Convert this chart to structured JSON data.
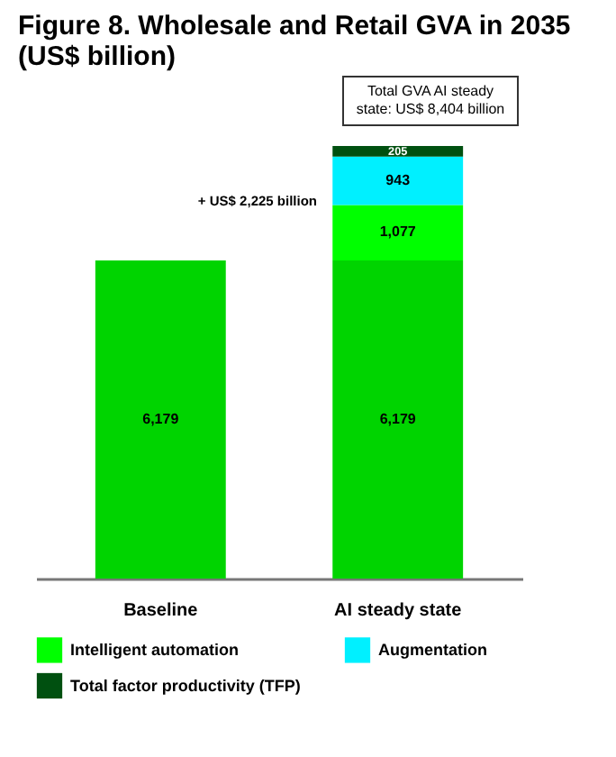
{
  "chart_data": {
    "type": "bar",
    "title": "Figure 8. Wholesale and Retail GVA in 2035 (US$ billion)",
    "categories": [
      "Baseline",
      "AI steady state"
    ],
    "stacked": true,
    "legend": "bottom",
    "series": [
      {
        "color": "#00d400",
        "values": [
          6179,
          6179
        ],
        "value_labels": [
          "6,179",
          "6,179"
        ]
      },
      {
        "name": "Intelligent automation",
        "color": "#00ff00",
        "values": [
          null,
          1077
        ],
        "value_labels": [
          null,
          "1,077"
        ]
      },
      {
        "name": "Augmentation",
        "color": "#00f0ff",
        "values": [
          null,
          943
        ],
        "value_labels": [
          null,
          "943"
        ]
      },
      {
        "name": "Total factor productivity (TFP)",
        "color": "#005010",
        "values": [
          null,
          205
        ],
        "value_labels": [
          null,
          "205"
        ]
      }
    ],
    "annotations": [
      "Total GVA AI steady state: US$ 8,404 billion",
      "+ US$ 2,225 billion"
    ]
  }
}
